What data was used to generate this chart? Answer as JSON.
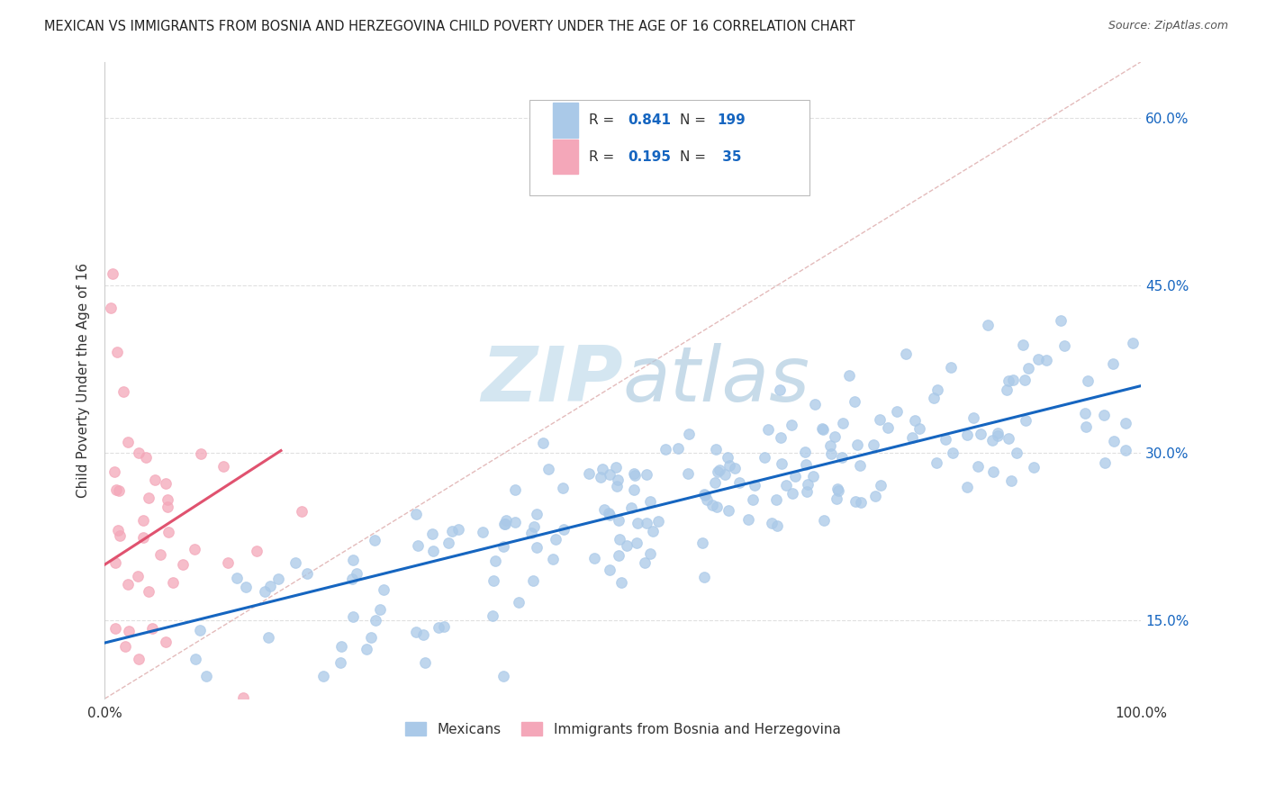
{
  "title": "MEXICAN VS IMMIGRANTS FROM BOSNIA AND HERZEGOVINA CHILD POVERTY UNDER THE AGE OF 16 CORRELATION CHART",
  "source": "Source: ZipAtlas.com",
  "ylabel": "Child Poverty Under the Age of 16",
  "xlim": [
    0,
    1.0
  ],
  "ylim": [
    0.08,
    0.65
  ],
  "xtick_positions": [
    0.0,
    0.1,
    0.2,
    0.3,
    0.4,
    0.5,
    0.6,
    0.7,
    0.8,
    0.9,
    1.0
  ],
  "xtick_labels": [
    "0.0%",
    "",
    "",
    "",
    "",
    "",
    "",
    "",
    "",
    "",
    "100.0%"
  ],
  "ytick_positions": [
    0.15,
    0.3,
    0.45,
    0.6
  ],
  "ytick_labels": [
    "15.0%",
    "30.0%",
    "45.0%",
    "60.0%"
  ],
  "mexican_R": 0.841,
  "mexican_N": 199,
  "bosnia_R": 0.195,
  "bosnia_N": 35,
  "mexican_color": "#aac9e8",
  "bosnia_color": "#f4a7b9",
  "mexican_line_color": "#1565c0",
  "bosnia_line_color": "#e0526f",
  "diagonal_color": "#ddaaaa",
  "watermark_color": "#d0e4f0",
  "legend_value_color": "#1565c0",
  "background_color": "#ffffff",
  "grid_color": "#e0e0e0",
  "title_color": "#222222",
  "source_color": "#555555",
  "label_color": "#333333",
  "right_tick_color": "#1565c0"
}
